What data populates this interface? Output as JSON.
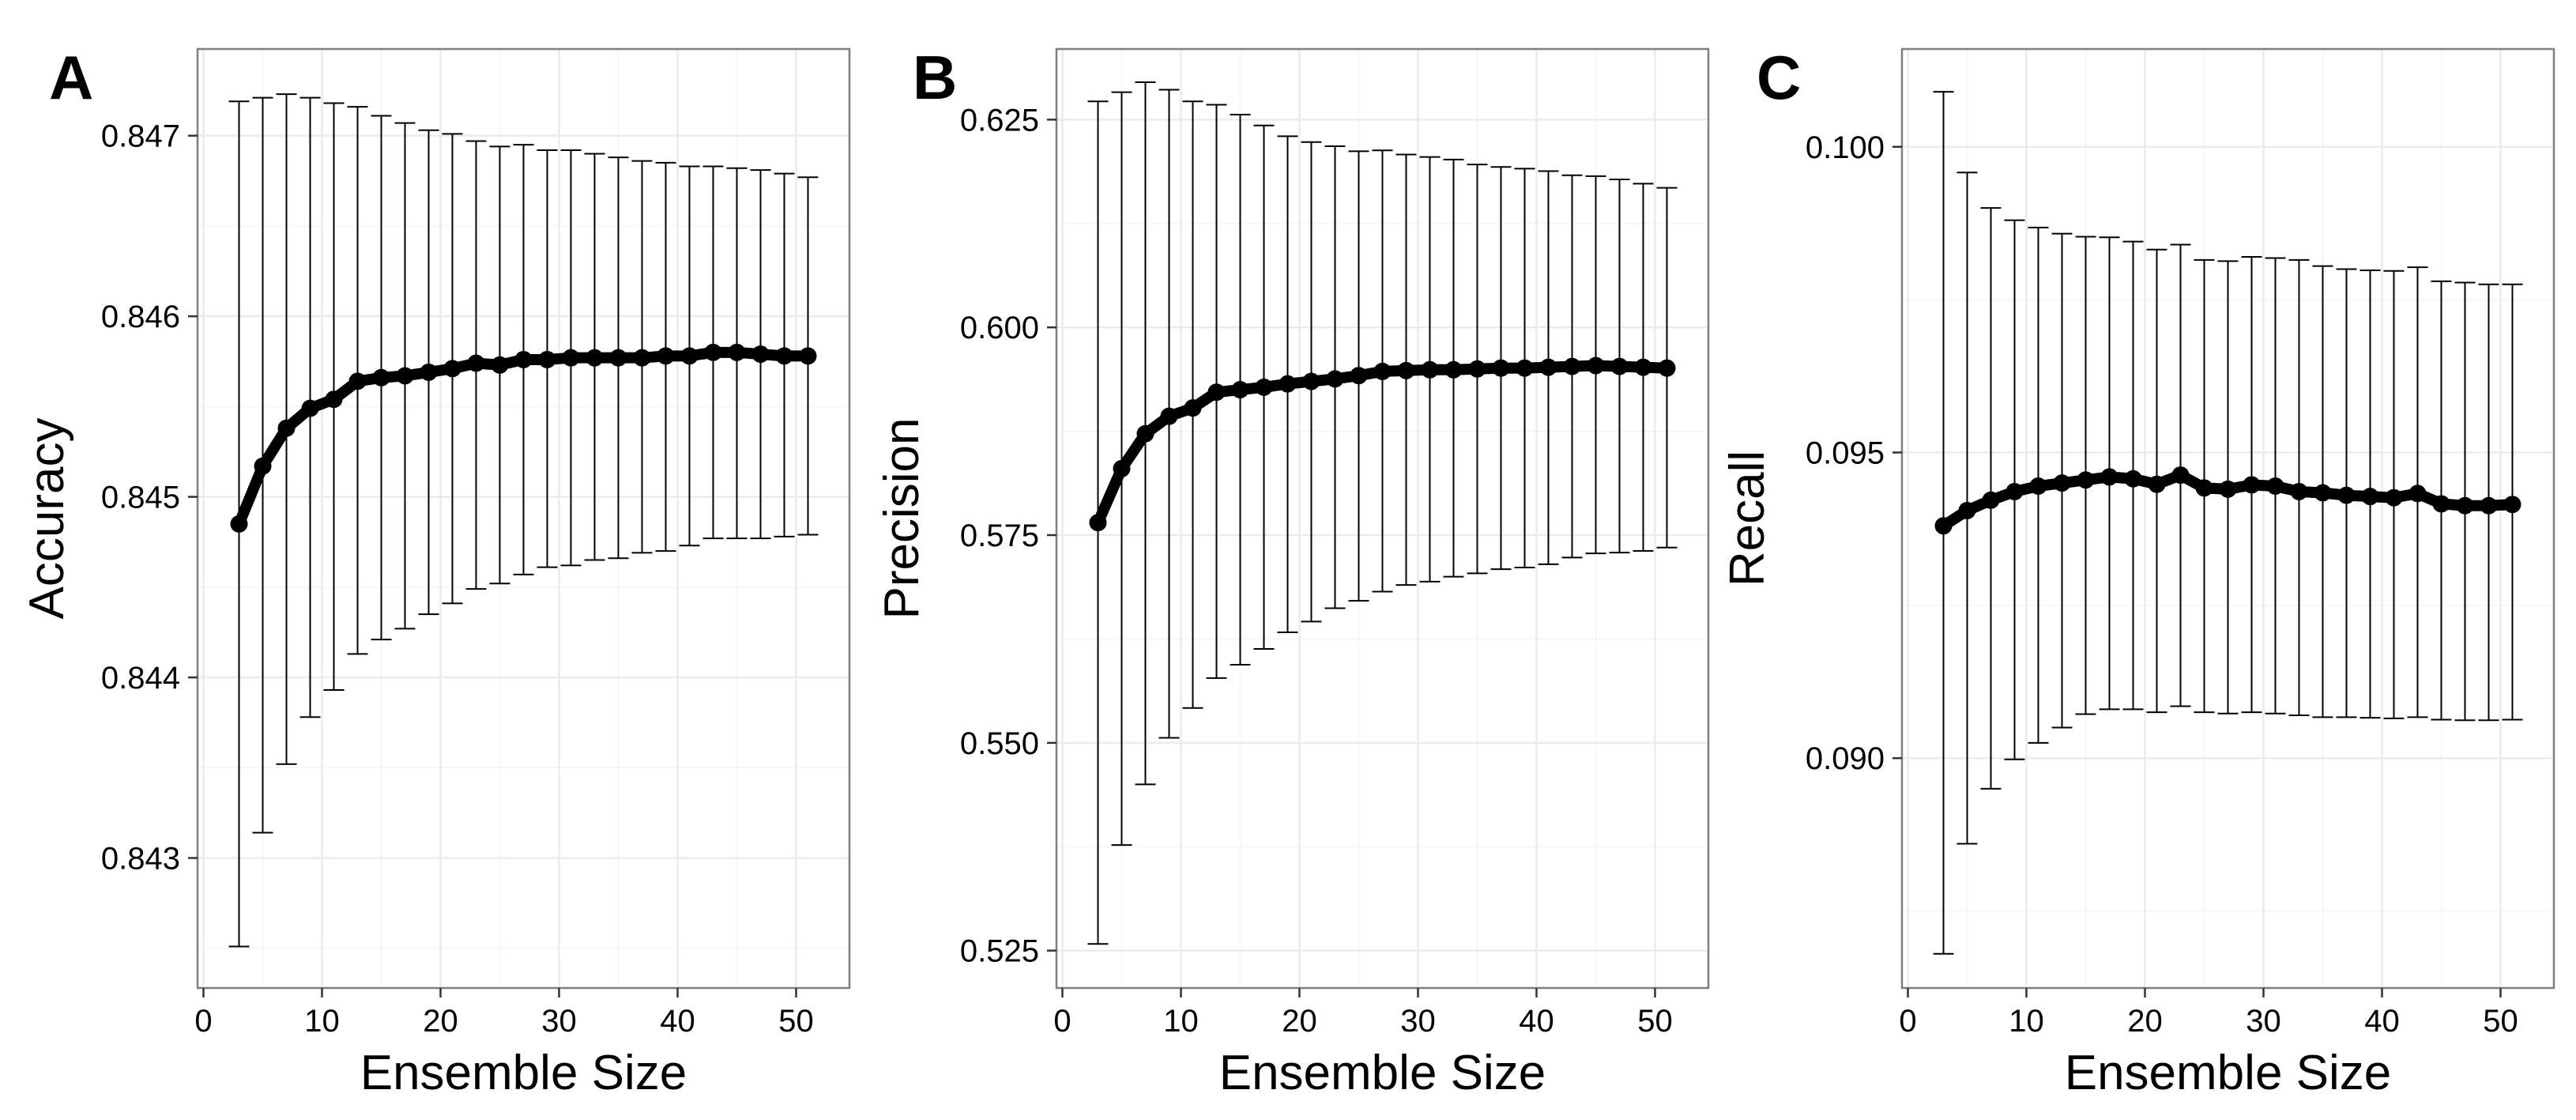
{
  "chart_data": [
    {
      "type": "line",
      "panel_label": "A",
      "xlabel": "Ensemble Size",
      "ylabel": "Accuracy",
      "xlim": [
        -0.5,
        54.5
      ],
      "ylim": [
        0.84228,
        0.84748
      ],
      "xticks": [
        0,
        10,
        20,
        30,
        40,
        50
      ],
      "xtick_labels": [
        "0",
        "10",
        "20",
        "30",
        "40",
        "50"
      ],
      "yticks": [
        0.843,
        0.844,
        0.845,
        0.846,
        0.847
      ],
      "ytick_labels": [
        "0.843",
        "0.844",
        "0.845",
        "0.846",
        "0.847"
      ],
      "grid": true,
      "series": [
        {
          "x": [
            3,
            5,
            7,
            9,
            11,
            13,
            15,
            17,
            19,
            21,
            23,
            25,
            27,
            29,
            31,
            33,
            35,
            37,
            39,
            41,
            43,
            45,
            47,
            49,
            51
          ],
          "y": [
            0.84485,
            0.84517,
            0.84538,
            0.84549,
            0.84554,
            0.84564,
            0.84566,
            0.84567,
            0.84569,
            0.84571,
            0.84574,
            0.84573,
            0.84576,
            0.84576,
            0.84577,
            0.84577,
            0.84577,
            0.84577,
            0.84578,
            0.84578,
            0.8458,
            0.8458,
            0.84579,
            0.84578,
            0.84578
          ],
          "error_upper": [
            0.84719,
            0.84721,
            0.84723,
            0.84721,
            0.84718,
            0.84716,
            0.84711,
            0.84707,
            0.84703,
            0.84701,
            0.84697,
            0.84694,
            0.84695,
            0.84692,
            0.84692,
            0.8469,
            0.84688,
            0.84686,
            0.84685,
            0.84683,
            0.84683,
            0.84682,
            0.84681,
            0.84679,
            0.84677
          ],
          "error_lower": [
            0.84251,
            0.84314,
            0.84352,
            0.84378,
            0.84393,
            0.84413,
            0.84421,
            0.84427,
            0.84435,
            0.84441,
            0.84449,
            0.84452,
            0.84457,
            0.84461,
            0.84462,
            0.84465,
            0.84466,
            0.84469,
            0.8447,
            0.84473,
            0.84477,
            0.84477,
            0.84477,
            0.84478,
            0.84479
          ]
        }
      ]
    },
    {
      "type": "line",
      "panel_label": "B",
      "xlabel": "Ensemble Size",
      "ylabel": "Precision",
      "xlim": [
        -0.5,
        54.5
      ],
      "ylim": [
        0.5205,
        0.6335
      ],
      "xticks": [
        0,
        10,
        20,
        30,
        40,
        50
      ],
      "xtick_labels": [
        "0",
        "10",
        "20",
        "30",
        "40",
        "50"
      ],
      "yticks": [
        0.525,
        0.55,
        0.575,
        0.6,
        0.625
      ],
      "ytick_labels": [
        "0.525",
        "0.550",
        "0.575",
        "0.600",
        "0.625"
      ],
      "grid": true,
      "series": [
        {
          "x": [
            3,
            5,
            7,
            9,
            11,
            13,
            15,
            17,
            19,
            21,
            23,
            25,
            27,
            29,
            31,
            33,
            35,
            37,
            39,
            41,
            43,
            45,
            47,
            49,
            51
          ],
          "y": [
            0.5765,
            0.583,
            0.5872,
            0.5893,
            0.5903,
            0.5922,
            0.5925,
            0.5928,
            0.5932,
            0.5935,
            0.5938,
            0.5942,
            0.5947,
            0.5948,
            0.5949,
            0.5949,
            0.595,
            0.5951,
            0.5951,
            0.5952,
            0.5953,
            0.5954,
            0.5953,
            0.5952,
            0.5951
          ],
          "error_upper": [
            0.6272,
            0.6283,
            0.6295,
            0.6286,
            0.6272,
            0.6268,
            0.6256,
            0.6243,
            0.623,
            0.6223,
            0.6218,
            0.6212,
            0.6213,
            0.6208,
            0.6205,
            0.6202,
            0.6196,
            0.6193,
            0.6191,
            0.6188,
            0.6183,
            0.6182,
            0.6178,
            0.6173,
            0.6168
          ],
          "error_lower": [
            0.5258,
            0.5377,
            0.545,
            0.5506,
            0.5542,
            0.5578,
            0.5594,
            0.5613,
            0.5633,
            0.5646,
            0.5662,
            0.5671,
            0.5682,
            0.569,
            0.5694,
            0.57,
            0.5704,
            0.5709,
            0.5711,
            0.5715,
            0.5723,
            0.5728,
            0.5729,
            0.5731,
            0.5735
          ]
        }
      ]
    },
    {
      "type": "line",
      "panel_label": "C",
      "xlabel": "Ensemble Size",
      "ylabel": "Recall",
      "xlim": [
        -0.5,
        54.5
      ],
      "ylim": [
        0.08624,
        0.1016
      ],
      "xticks": [
        0,
        10,
        20,
        30,
        40,
        50
      ],
      "xtick_labels": [
        "0",
        "10",
        "20",
        "30",
        "40",
        "50"
      ],
      "yticks": [
        0.09,
        0.095,
        0.1
      ],
      "ytick_labels": [
        "0.090",
        "0.095",
        "0.100"
      ],
      "grid": true,
      "series": [
        {
          "x": [
            3,
            5,
            7,
            9,
            11,
            13,
            15,
            17,
            19,
            21,
            23,
            25,
            27,
            29,
            31,
            33,
            35,
            37,
            39,
            41,
            43,
            45,
            47,
            49,
            51
          ],
          "y": [
            0.0938,
            0.09405,
            0.09422,
            0.09436,
            0.09445,
            0.0945,
            0.09455,
            0.0946,
            0.09457,
            0.09448,
            0.09463,
            0.09442,
            0.0944,
            0.09447,
            0.09445,
            0.09436,
            0.09434,
            0.0943,
            0.09428,
            0.09426,
            0.09433,
            0.09416,
            0.09413,
            0.09413,
            0.09415
          ],
          "error_upper": [
            0.1009,
            0.09958,
            0.099,
            0.0988,
            0.09868,
            0.09858,
            0.09853,
            0.09852,
            0.09845,
            0.09832,
            0.0984,
            0.09815,
            0.09813,
            0.0982,
            0.09818,
            0.09815,
            0.09805,
            0.098,
            0.09798,
            0.09797,
            0.09803,
            0.0978,
            0.09778,
            0.09775,
            0.09775
          ],
          "error_lower": [
            0.0868,
            0.0886,
            0.0895,
            0.08998,
            0.09025,
            0.0905,
            0.09072,
            0.0908,
            0.0908,
            0.09075,
            0.09085,
            0.09075,
            0.09073,
            0.09075,
            0.09073,
            0.0907,
            0.09067,
            0.09067,
            0.09066,
            0.09065,
            0.09067,
            0.09063,
            0.09062,
            0.09062,
            0.09063
          ]
        }
      ]
    }
  ]
}
